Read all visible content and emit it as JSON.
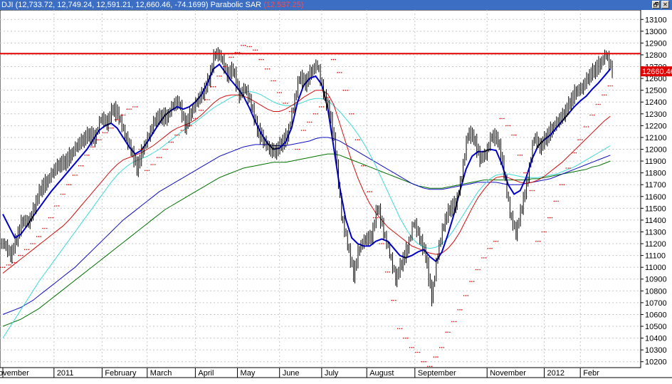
{
  "window": {
    "title_symbol": "DJI",
    "title_values": "(12,733.72, 12,749.24, 12,591.21, 12,660.46, -74.1699)",
    "indicator_name": "Parabolic SAR",
    "indicator_value": "(12,537.25)",
    "restore_icon": "restore-icon",
    "close_icon": "close-icon",
    "restore_glyph": "🗗",
    "close_glyph": "✕"
  },
  "chart_data": {
    "type": "line",
    "title": "DJI",
    "price_label": "12660.46",
    "resistance_level": 12810,
    "ylim": [
      10150,
      13180
    ],
    "y_ticks": [
      13100,
      13000,
      12900,
      12800,
      12700,
      12600,
      12500,
      12400,
      12300,
      12200,
      12100,
      12000,
      11900,
      11800,
      11700,
      11600,
      11500,
      11400,
      11300,
      11200,
      11100,
      11000,
      10900,
      10800,
      10700,
      10600,
      10500,
      10400,
      10300,
      10200
    ],
    "x_labels": [
      "ovember",
      "2011",
      "February",
      "March",
      "April",
      "May",
      "June",
      "July",
      "August",
      "September",
      "November",
      "2012",
      "Febr"
    ],
    "x_label_weeks": [
      0,
      8.5,
      16.5,
      24,
      32,
      39,
      46,
      53,
      60.5,
      68.5,
      80.5,
      90,
      96
    ],
    "grid": true,
    "colors": {
      "price": "#000000",
      "resistance": "#e00000",
      "ma_short": "#0000cc",
      "ma_red": "#d01010",
      "ma_cyan": "#40d8d8",
      "ma_blue_long": "#1010c0",
      "ma_green_long": "#007000",
      "sar": "#e00000",
      "price_tag_bg": "#e00000"
    },
    "series": [
      {
        "key": "close",
        "values": [
          11200,
          11100,
          11250,
          11400,
          11380,
          11520,
          11670,
          11720,
          11810,
          11870,
          11890,
          11950,
          12030,
          12080,
          12130,
          12090,
          12270,
          12220,
          12350,
          12280,
          12120,
          12000,
          11840,
          12000,
          12120,
          12250,
          12280,
          12270,
          12380,
          12400,
          12200,
          12310,
          12410,
          12480,
          12600,
          12820,
          12780,
          12630,
          12680,
          12460,
          12520,
          12380,
          12170,
          12080,
          12000,
          11980,
          12050,
          12110,
          12360,
          12620,
          12560,
          12660,
          12720,
          12480,
          12320,
          12000,
          11440,
          11200,
          10940,
          11170,
          11240,
          11260,
          11520,
          11300,
          11120,
          10900,
          11040,
          11160,
          11390,
          11250,
          11100,
          10740,
          11120,
          11370,
          11500,
          11530,
          11780,
          12140,
          12100,
          11920,
          11960,
          12120,
          12080,
          11820,
          11460,
          11290,
          11520,
          11760,
          12110,
          12020,
          12100,
          12170,
          12240,
          12300,
          12400,
          12490,
          12520,
          12610,
          12670,
          12720,
          12810,
          12660
        ]
      },
      {
        "key": "sar",
        "values": [
          11000,
          11020,
          11040,
          11100,
          11150,
          11200,
          11260,
          11330,
          11420,
          11520,
          11620,
          11700,
          11780,
          11860,
          11950,
          12020,
          12080,
          12140,
          12180,
          12250,
          12290,
          12340,
          12360,
          12000,
          11820,
          11870,
          11930,
          12000,
          12060,
          12120,
          12160,
          12200,
          12260,
          12330,
          12420,
          12530,
          12620,
          12700,
          12780,
          12820,
          12880,
          12870,
          12840,
          12760,
          12680,
          12580,
          12480,
          12390,
          12320,
          12000,
          12160,
          12230,
          12300,
          12360,
          12440,
          12760,
          12650,
          12500,
          12300,
          12080,
          11860,
          11640,
          11420,
          11200,
          10960,
          10720,
          10480,
          10400,
          10320,
          10280,
          10200,
          10160,
          10240,
          10320,
          10450,
          10540,
          10640,
          10760,
          10880,
          10980,
          11080,
          11160,
          11220,
          12260,
          12200,
          12120,
          11950,
          11800,
          11650,
          11220,
          11300,
          11420,
          11560,
          11700,
          11840,
          11970,
          12080,
          12190,
          12290,
          12380,
          12460,
          12537.25
        ]
      },
      {
        "key": "ma_short",
        "values": [
          11450,
          11350,
          11250,
          11280,
          11350,
          11430,
          11500,
          11570,
          11640,
          11700,
          11760,
          11820,
          11880,
          11940,
          12000,
          12080,
          12160,
          12200,
          12220,
          12180,
          12100,
          12020,
          11960,
          11990,
          12060,
          12140,
          12220,
          12290,
          12330,
          12360,
          12340,
          12360,
          12400,
          12460,
          12560,
          12680,
          12720,
          12650,
          12580,
          12520,
          12450,
          12350,
          12230,
          12130,
          12050,
          12000,
          12010,
          12060,
          12180,
          12400,
          12540,
          12600,
          12620,
          12550,
          12350,
          12020,
          11680,
          11410,
          11250,
          11200,
          11180,
          11180,
          11220,
          11240,
          11220,
          11160,
          11100,
          11080,
          11100,
          11130,
          11150,
          11090,
          11050,
          11130,
          11280,
          11450,
          11650,
          11830,
          11940,
          11980,
          11980,
          12000,
          11990,
          11870,
          11700,
          11620,
          11650,
          11760,
          11920,
          12030,
          12080,
          12120,
          12180,
          12240,
          12300,
          12360,
          12410,
          12450,
          12510,
          12560,
          12620,
          12680
        ]
      },
      {
        "key": "ma_red",
        "values": [
          10950,
          10990,
          11030,
          11070,
          11110,
          11150,
          11190,
          11230,
          11270,
          11310,
          11350,
          11400,
          11460,
          11520,
          11580,
          11640,
          11700,
          11760,
          11820,
          11870,
          11910,
          11930,
          11950,
          11970,
          12000,
          12030,
          12070,
          12110,
          12150,
          12180,
          12200,
          12220,
          12250,
          12290,
          12340,
          12390,
          12430,
          12450,
          12460,
          12460,
          12450,
          12430,
          12400,
          12370,
          12340,
          12320,
          12320,
          12340,
          12370,
          12400,
          12440,
          12470,
          12500,
          12500,
          12470,
          12380,
          12220,
          12060,
          11900,
          11760,
          11640,
          11540,
          11460,
          11400,
          11340,
          11300,
          11260,
          11220,
          11180,
          11160,
          11140,
          11120,
          11110,
          11120,
          11160,
          11220,
          11300,
          11400,
          11500,
          11590,
          11660,
          11720,
          11760,
          11770,
          11760,
          11740,
          11720,
          11710,
          11720,
          11740,
          11770,
          11810,
          11850,
          11890,
          11940,
          11990,
          12040,
          12090,
          12140,
          12190,
          12240,
          12280
        ]
      },
      {
        "key": "ma_cyan",
        "values": [
          10400,
          10480,
          10560,
          10640,
          10720,
          10800,
          10880,
          10950,
          11020,
          11090,
          11160,
          11230,
          11300,
          11370,
          11440,
          11510,
          11580,
          11650,
          11720,
          11780,
          11830,
          11870,
          11900,
          11920,
          11940,
          11970,
          12000,
          12040,
          12080,
          12120,
          12160,
          12200,
          12230,
          12270,
          12310,
          12350,
          12380,
          12410,
          12440,
          12460,
          12480,
          12490,
          12480,
          12460,
          12430,
          12400,
          12380,
          12370,
          12370,
          12380,
          12400,
          12420,
          12430,
          12430,
          12410,
          12370,
          12320,
          12260,
          12200,
          12130,
          12050,
          11960,
          11860,
          11750,
          11640,
          11530,
          11420,
          11330,
          11250,
          11200,
          11170,
          11160,
          11170,
          11200,
          11250,
          11320,
          11400,
          11480,
          11560,
          11640,
          11700,
          11750,
          11780,
          11790,
          11790,
          11780,
          11770,
          11760,
          11760,
          11760,
          11770,
          11780,
          11790,
          11810,
          11830,
          11850,
          11880,
          11910,
          11940,
          11970,
          12000,
          12030
        ]
      },
      {
        "key": "ma_blue_long",
        "values": [
          10600,
          10620,
          10640,
          10660,
          10690,
          10720,
          10760,
          10800,
          10840,
          10880,
          10920,
          10960,
          11000,
          11050,
          11100,
          11150,
          11200,
          11250,
          11300,
          11350,
          11400,
          11440,
          11480,
          11520,
          11560,
          11600,
          11640,
          11670,
          11700,
          11730,
          11760,
          11790,
          11820,
          11850,
          11880,
          11910,
          11940,
          11960,
          11980,
          12000,
          12020,
          12030,
          12040,
          12040,
          12040,
          12030,
          12030,
          12030,
          12040,
          12050,
          12060,
          12070,
          12090,
          12100,
          12100,
          12090,
          12070,
          12040,
          12010,
          11980,
          11950,
          11920,
          11890,
          11860,
          11830,
          11800,
          11770,
          11740,
          11710,
          11690,
          11670,
          11660,
          11660,
          11660,
          11670,
          11680,
          11690,
          11700,
          11710,
          11720,
          11720,
          11720,
          11720,
          11710,
          11700,
          11700,
          11700,
          11710,
          11720,
          11730,
          11740,
          11750,
          11770,
          11790,
          11810,
          11830,
          11850,
          11870,
          11890,
          11910,
          11930,
          11950
        ]
      },
      {
        "key": "ma_green_long",
        "values": [
          10500,
          10520,
          10540,
          10560,
          10590,
          10620,
          10650,
          10690,
          10730,
          10770,
          10810,
          10850,
          10890,
          10930,
          10970,
          11010,
          11050,
          11090,
          11130,
          11170,
          11210,
          11250,
          11290,
          11330,
          11370,
          11410,
          11450,
          11490,
          11520,
          11550,
          11580,
          11610,
          11640,
          11670,
          11700,
          11730,
          11760,
          11780,
          11800,
          11820,
          11840,
          11850,
          11860,
          11870,
          11880,
          11890,
          11890,
          11890,
          11900,
          11910,
          11920,
          11930,
          11940,
          11950,
          11960,
          11960,
          11950,
          11930,
          11910,
          11890,
          11870,
          11850,
          11830,
          11810,
          11790,
          11770,
          11750,
          11730,
          11710,
          11690,
          11680,
          11670,
          11670,
          11670,
          11680,
          11690,
          11700,
          11710,
          11720,
          11730,
          11740,
          11740,
          11740,
          11740,
          11740,
          11740,
          11740,
          11740,
          11750,
          11750,
          11760,
          11770,
          11780,
          11790,
          11800,
          11810,
          11820,
          11830,
          11850,
          11860,
          11880,
          11900
        ]
      }
    ]
  }
}
